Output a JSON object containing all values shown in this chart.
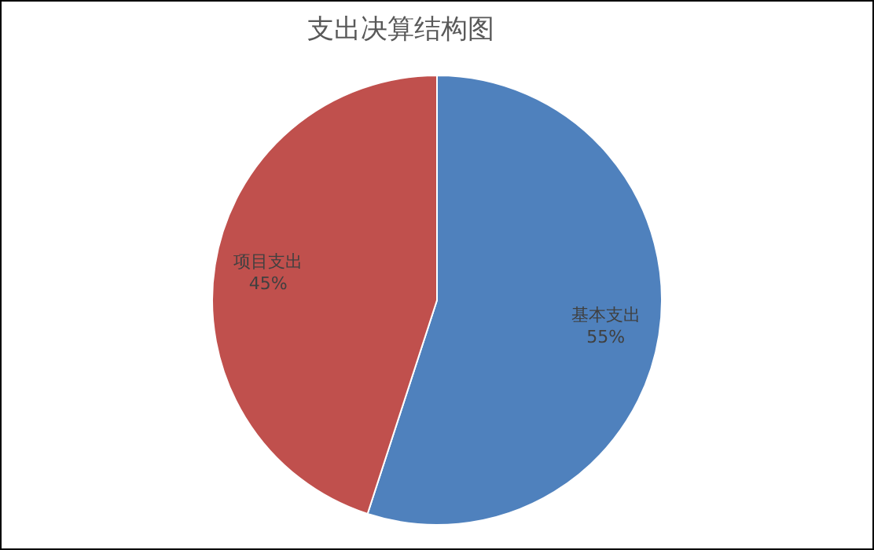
{
  "chart_data": {
    "type": "pie",
    "title": "支出决算结构图",
    "categories": [
      "基本支出",
      "项目支出"
    ],
    "values": [
      55,
      45
    ],
    "colors": [
      "#4f81bd",
      "#c0504d"
    ],
    "value_labels": [
      "55%",
      "45%"
    ]
  }
}
